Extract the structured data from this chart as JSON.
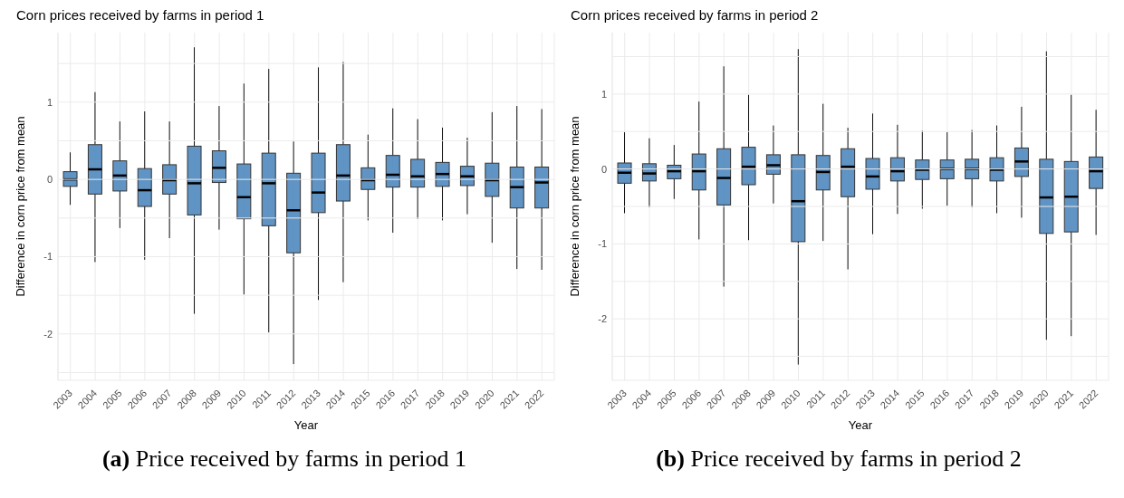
{
  "chart_data": [
    {
      "type": "box",
      "title": "Corn prices received by farms in period 1",
      "xlabel": "Year",
      "ylabel": "Difference in corn price from mean",
      "color": "#4f88bf",
      "grid": true,
      "categories": [
        "2003",
        "2004",
        "2005",
        "2006",
        "2007",
        "2008",
        "2009",
        "2010",
        "2011",
        "2012",
        "2013",
        "2014",
        "2015",
        "2016",
        "2017",
        "2018",
        "2019",
        "2020",
        "2021",
        "2022"
      ],
      "ylim": [
        -2.6,
        1.9
      ],
      "yticks": [
        {
          "value": -2.5,
          "label": null
        },
        -2,
        {
          "value": -1.5,
          "label": null
        },
        -1,
        {
          "value": -0.5,
          "label": null
        },
        0,
        {
          "value": 0.5,
          "label": null
        },
        1,
        {
          "value": 1.5,
          "label": null
        }
      ],
      "boxes": [
        {
          "low": -0.33,
          "q1": -0.09,
          "median": 0.0,
          "q3": 0.1,
          "high": 0.35
        },
        {
          "low": -1.07,
          "q1": -0.19,
          "median": 0.13,
          "q3": 0.45,
          "high": 1.13
        },
        {
          "low": -0.63,
          "q1": -0.15,
          "median": 0.05,
          "q3": 0.24,
          "high": 0.75
        },
        {
          "low": -1.04,
          "q1": -0.35,
          "median": -0.14,
          "q3": 0.14,
          "high": 0.88
        },
        {
          "low": -0.76,
          "q1": -0.19,
          "median": -0.01,
          "q3": 0.19,
          "high": 0.75
        },
        {
          "low": -1.74,
          "q1": -0.46,
          "median": -0.05,
          "q3": 0.43,
          "high": 1.71
        },
        {
          "low": -0.65,
          "q1": -0.04,
          "median": 0.15,
          "q3": 0.37,
          "high": 0.95
        },
        {
          "low": -1.49,
          "q1": -0.51,
          "median": -0.23,
          "q3": 0.2,
          "high": 1.24
        },
        {
          "low": -1.98,
          "q1": -0.6,
          "median": -0.05,
          "q3": 0.34,
          "high": 1.43
        },
        {
          "low": -2.39,
          "q1": -0.95,
          "median": -0.4,
          "q3": 0.08,
          "high": 0.49
        },
        {
          "low": -1.56,
          "q1": -0.43,
          "median": -0.17,
          "q3": 0.34,
          "high": 1.45
        },
        {
          "low": -1.33,
          "q1": -0.28,
          "median": 0.05,
          "q3": 0.45,
          "high": 1.52
        },
        {
          "low": -0.53,
          "q1": -0.13,
          "median": -0.01,
          "q3": 0.15,
          "high": 0.58
        },
        {
          "low": -0.69,
          "q1": -0.1,
          "median": 0.06,
          "q3": 0.31,
          "high": 0.92
        },
        {
          "low": -0.51,
          "q1": -0.1,
          "median": 0.04,
          "q3": 0.26,
          "high": 0.78
        },
        {
          "low": -0.53,
          "q1": -0.09,
          "median": 0.07,
          "q3": 0.22,
          "high": 0.67
        },
        {
          "low": -0.45,
          "q1": -0.08,
          "median": 0.04,
          "q3": 0.17,
          "high": 0.54
        },
        {
          "low": -0.82,
          "q1": -0.22,
          "median": -0.01,
          "q3": 0.21,
          "high": 0.87
        },
        {
          "low": -1.16,
          "q1": -0.37,
          "median": -0.1,
          "q3": 0.16,
          "high": 0.95
        },
        {
          "low": -1.17,
          "q1": -0.37,
          "median": -0.04,
          "q3": 0.16,
          "high": 0.91
        }
      ],
      "annotations": [
        "(a) Price received by farms in period 1"
      ]
    },
    {
      "type": "box",
      "title": "Corn prices received by farms in period 2",
      "xlabel": "Year",
      "ylabel": "Difference in corn price from mean",
      "color": "#4f88bf",
      "grid": true,
      "categories": [
        "2003",
        "2004",
        "2005",
        "2006",
        "2007",
        "2008",
        "2009",
        "2010",
        "2011",
        "2012",
        "2013",
        "2014",
        "2015",
        "2016",
        "2017",
        "2018",
        "2019",
        "2020",
        "2021",
        "2022"
      ],
      "ylim": [
        -2.82,
        1.82
      ],
      "yticks": [
        {
          "value": -2.5,
          "label": null
        },
        -2,
        {
          "value": -1.5,
          "label": null
        },
        -1,
        {
          "value": -0.5,
          "label": null
        },
        0,
        {
          "value": 0.5,
          "label": null
        },
        1,
        {
          "value": 1.5,
          "label": null
        }
      ],
      "boxes": [
        {
          "low": -0.59,
          "q1": -0.19,
          "median": -0.05,
          "q3": 0.08,
          "high": 0.49
        },
        {
          "low": -0.51,
          "q1": -0.16,
          "median": -0.06,
          "q3": 0.07,
          "high": 0.41
        },
        {
          "low": -0.4,
          "q1": -0.13,
          "median": -0.03,
          "q3": 0.05,
          "high": 0.32
        },
        {
          "low": -0.94,
          "q1": -0.28,
          "median": -0.03,
          "q3": 0.2,
          "high": 0.9
        },
        {
          "low": -1.57,
          "q1": -0.48,
          "median": -0.12,
          "q3": 0.27,
          "high": 1.37
        },
        {
          "low": -0.95,
          "q1": -0.21,
          "median": 0.03,
          "q3": 0.29,
          "high": 0.99
        },
        {
          "low": -0.46,
          "q1": -0.07,
          "median": 0.05,
          "q3": 0.19,
          "high": 0.58
        },
        {
          "low": -2.61,
          "q1": -0.97,
          "median": -0.43,
          "q3": 0.19,
          "high": 1.6
        },
        {
          "low": -0.96,
          "q1": -0.28,
          "median": -0.04,
          "q3": 0.18,
          "high": 0.87
        },
        {
          "low": -1.34,
          "q1": -0.37,
          "median": 0.03,
          "q3": 0.27,
          "high": 0.55
        },
        {
          "low": -0.87,
          "q1": -0.27,
          "median": -0.1,
          "q3": 0.14,
          "high": 0.74
        },
        {
          "low": -0.6,
          "q1": -0.16,
          "median": -0.03,
          "q3": 0.15,
          "high": 0.59
        },
        {
          "low": -0.53,
          "q1": -0.14,
          "median": -0.01,
          "q3": 0.12,
          "high": 0.51
        },
        {
          "low": -0.49,
          "q1": -0.13,
          "median": 0.0,
          "q3": 0.12,
          "high": 0.49
        },
        {
          "low": -0.51,
          "q1": -0.13,
          "median": 0.0,
          "q3": 0.13,
          "high": 0.52
        },
        {
          "low": -0.59,
          "q1": -0.16,
          "median": -0.01,
          "q3": 0.15,
          "high": 0.58
        },
        {
          "low": -0.65,
          "q1": -0.1,
          "median": 0.1,
          "q3": 0.28,
          "high": 0.83
        },
        {
          "low": -2.28,
          "q1": -0.86,
          "median": -0.38,
          "q3": 0.13,
          "high": 1.57
        },
        {
          "low": -2.23,
          "q1": -0.84,
          "median": -0.37,
          "q3": 0.1,
          "high": 0.99
        },
        {
          "low": -0.88,
          "q1": -0.26,
          "median": -0.03,
          "q3": 0.16,
          "high": 0.79
        }
      ],
      "annotations": [
        "(b) Price received by farms in period 2"
      ]
    }
  ]
}
